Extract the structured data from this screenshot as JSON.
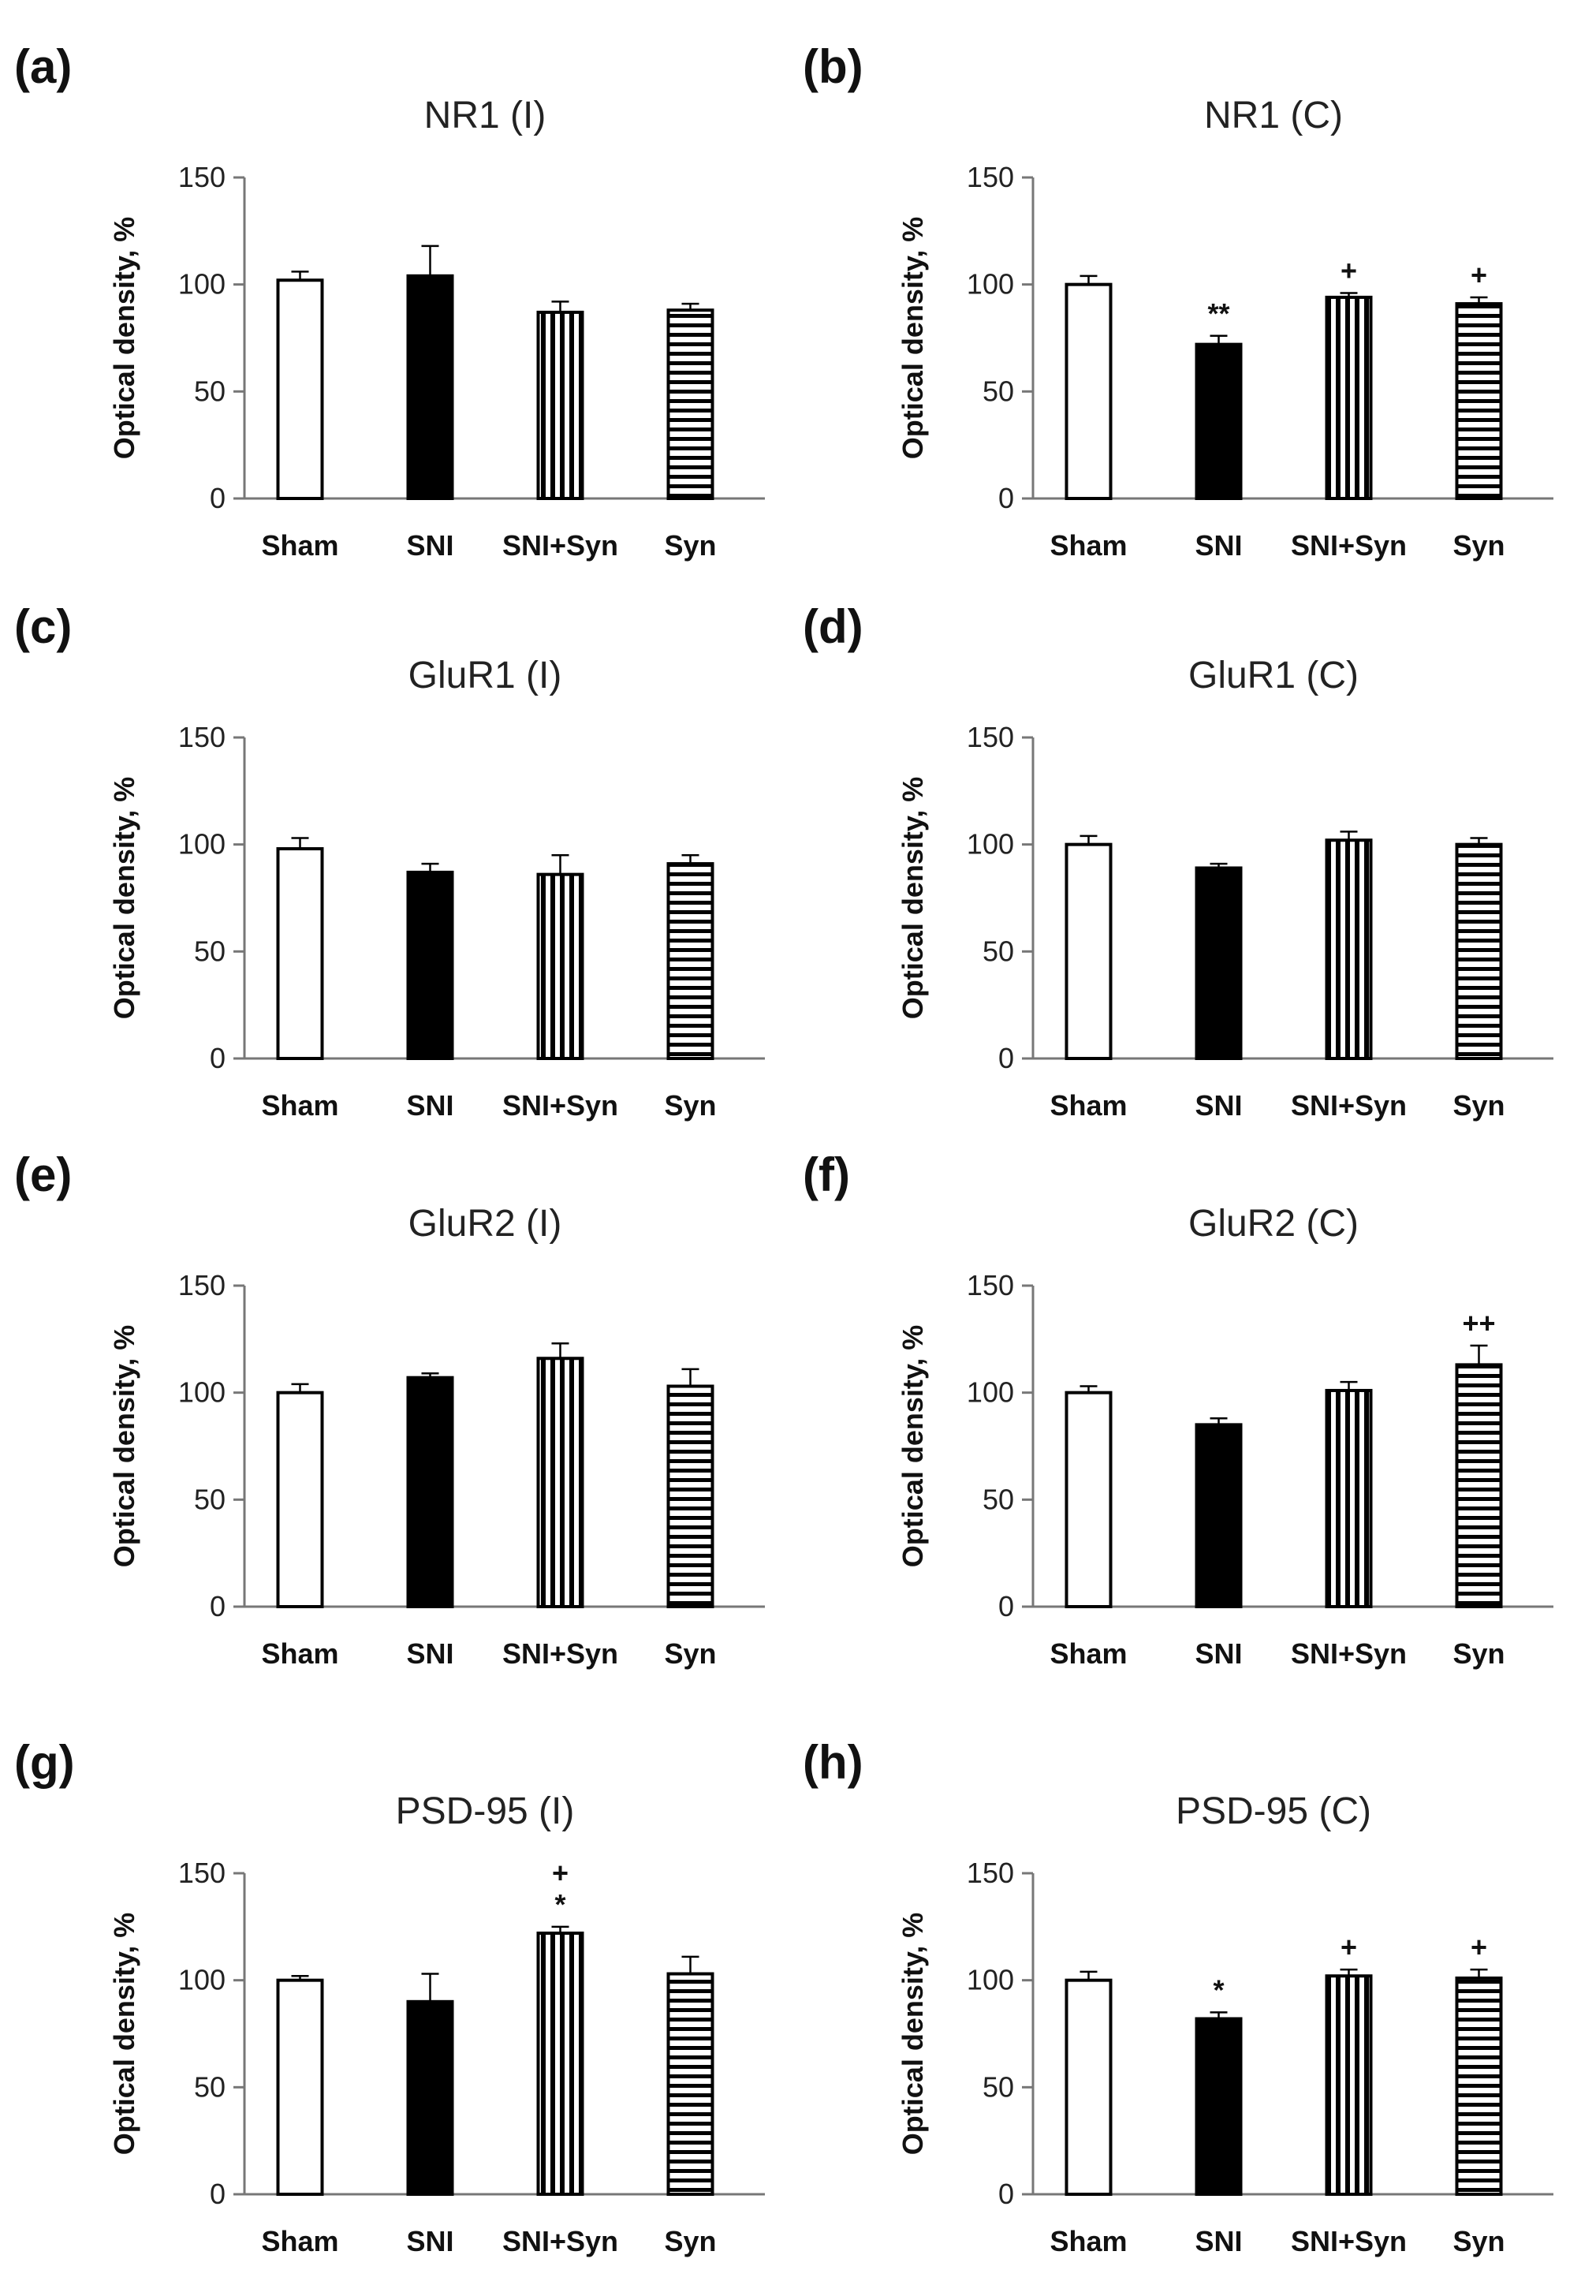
{
  "chart_data": [
    {
      "type": "bar",
      "panel": "(a)",
      "title": "NR1 (I)",
      "ylabel": "Optical density, %",
      "ylim": [
        0,
        150
      ],
      "yticks": [
        0,
        50,
        100,
        150
      ],
      "categories": [
        "Sham",
        "SNI",
        "SNI+Syn",
        "Syn"
      ],
      "values": [
        102,
        104,
        87,
        88
      ],
      "errors": [
        4,
        14,
        5,
        3
      ],
      "annotations": [
        "",
        "",
        "",
        ""
      ]
    },
    {
      "type": "bar",
      "panel": "(b)",
      "title": "NR1 (C)",
      "ylabel": "Optical density, %",
      "ylim": [
        0,
        150
      ],
      "yticks": [
        0,
        50,
        100,
        150
      ],
      "categories": [
        "Sham",
        "SNI",
        "SNI+Syn",
        "Syn"
      ],
      "values": [
        100,
        72,
        94,
        91
      ],
      "errors": [
        4,
        4,
        2,
        3
      ],
      "annotations": [
        "",
        "**",
        "+",
        "+"
      ]
    },
    {
      "type": "bar",
      "panel": "(c)",
      "title": "GluR1 (I)",
      "ylabel": "Optical density, %",
      "ylim": [
        0,
        150
      ],
      "yticks": [
        0,
        50,
        100,
        150
      ],
      "categories": [
        "Sham",
        "SNI",
        "SNI+Syn",
        "Syn"
      ],
      "values": [
        98,
        87,
        86,
        91
      ],
      "errors": [
        5,
        4,
        9,
        4
      ],
      "annotations": [
        "",
        "",
        "",
        ""
      ]
    },
    {
      "type": "bar",
      "panel": "(d)",
      "title": "GluR1 (C)",
      "ylabel": "Optical density, %",
      "ylim": [
        0,
        150
      ],
      "yticks": [
        0,
        50,
        100,
        150
      ],
      "categories": [
        "Sham",
        "SNI",
        "SNI+Syn",
        "Syn"
      ],
      "values": [
        100,
        89,
        102,
        100
      ],
      "errors": [
        4,
        2,
        4,
        3
      ],
      "annotations": [
        "",
        "",
        "",
        ""
      ]
    },
    {
      "type": "bar",
      "panel": "(e)",
      "title": "GluR2 (I)",
      "ylabel": "Optical density, %",
      "ylim": [
        0,
        150
      ],
      "yticks": [
        0,
        50,
        100,
        150
      ],
      "categories": [
        "Sham",
        "SNI",
        "SNI+Syn",
        "Syn"
      ],
      "values": [
        100,
        107,
        116,
        103
      ],
      "errors": [
        4,
        2,
        7,
        8
      ],
      "annotations": [
        "",
        "",
        "",
        ""
      ]
    },
    {
      "type": "bar",
      "panel": "(f)",
      "title": "GluR2 (C)",
      "ylabel": "Optical density, %",
      "ylim": [
        0,
        150
      ],
      "yticks": [
        0,
        50,
        100,
        150
      ],
      "categories": [
        "Sham",
        "SNI",
        "SNI+Syn",
        "Syn"
      ],
      "values": [
        100,
        85,
        101,
        113
      ],
      "errors": [
        3,
        3,
        4,
        9
      ],
      "annotations": [
        "",
        "",
        "",
        "++"
      ]
    },
    {
      "type": "bar",
      "panel": "(g)",
      "title": "PSD-95 (I)",
      "ylabel": "Optical density, %",
      "ylim": [
        0,
        150
      ],
      "yticks": [
        0,
        50,
        100,
        150
      ],
      "categories": [
        "Sham",
        "SNI",
        "SNI+Syn",
        "Syn"
      ],
      "values": [
        100,
        90,
        122,
        103
      ],
      "errors": [
        2,
        13,
        3,
        8
      ],
      "annotations": [
        "",
        "",
        "+\n*",
        ""
      ]
    },
    {
      "type": "bar",
      "panel": "(h)",
      "title": "PSD-95 (C)",
      "ylabel": "Optical density, %",
      "ylim": [
        0,
        150
      ],
      "yticks": [
        0,
        50,
        100,
        150
      ],
      "categories": [
        "Sham",
        "SNI",
        "SNI+Syn",
        "Syn"
      ],
      "values": [
        100,
        82,
        102,
        101
      ],
      "errors": [
        4,
        3,
        3,
        4
      ],
      "annotations": [
        "",
        "*",
        "+",
        "+"
      ]
    }
  ]
}
